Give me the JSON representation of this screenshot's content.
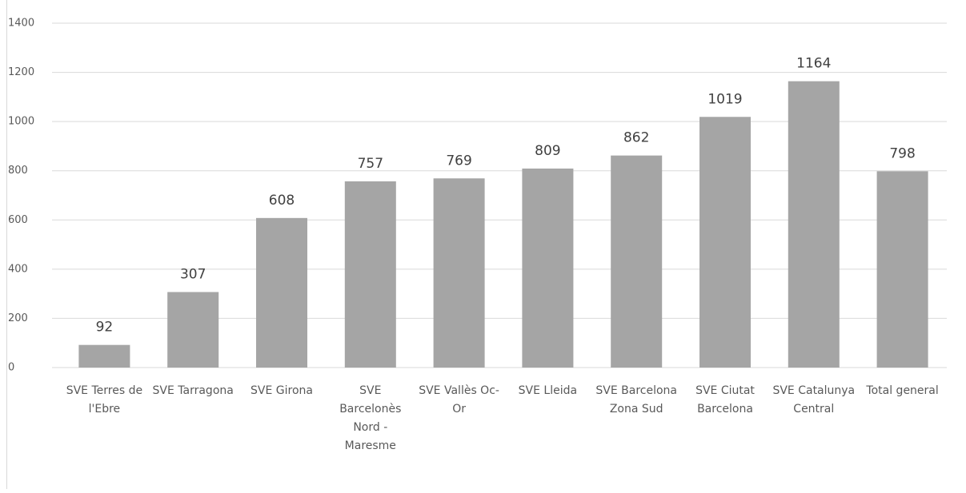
{
  "chart_data": {
    "type": "bar",
    "categories": [
      "SVE Terres de l'Ebre",
      "SVE Tarragona",
      "SVE Girona",
      "SVE Barcelonès Nord - Maresme",
      "SVE Vallès Oc-Or",
      "SVE Lleida",
      "SVE Barcelona Zona Sud",
      "SVE Ciutat Barcelona",
      "SVE Catalunya Central",
      "Total general"
    ],
    "values": [
      92,
      307,
      608,
      757,
      769,
      809,
      862,
      1019,
      1164,
      798
    ],
    "color": "#a5a5a5",
    "ylim": [
      0,
      1400
    ],
    "yticks": [
      0,
      200,
      400,
      600,
      800,
      1000,
      1200,
      1400
    ],
    "grid": true
  }
}
